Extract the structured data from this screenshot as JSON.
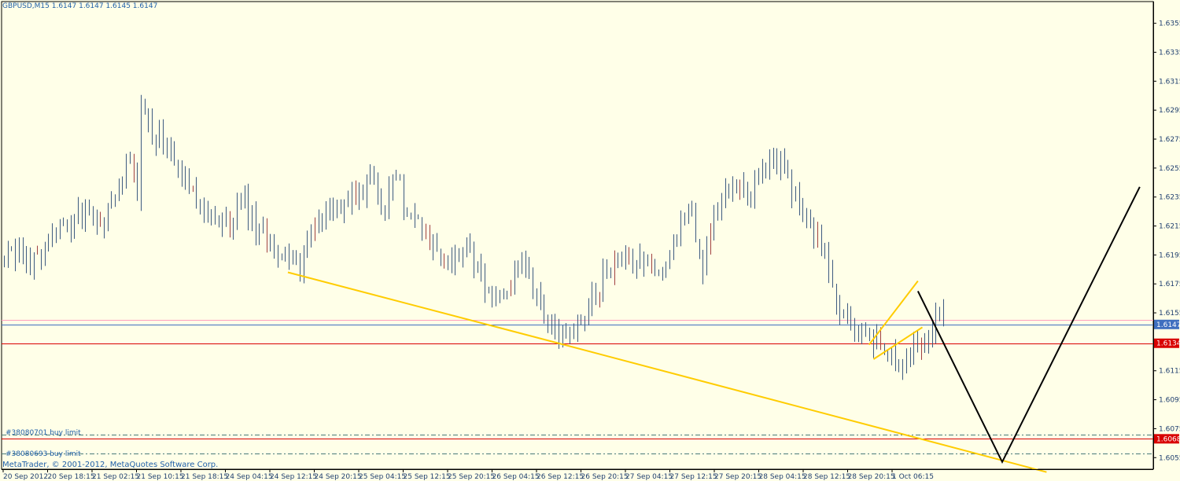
{
  "window": {
    "symbol_header": "GBPUSD,M15  1.6147 1.6147 1.6145 1.6147",
    "copyright": "MetaTrader, © 2001-2012, MetaQuotes Software Corp."
  },
  "orders": [
    {
      "label": "#38080701 buy limit",
      "price": 1.6071
    },
    {
      "label": "#38080693 buy limit",
      "price": 1.6058
    }
  ],
  "colors": {
    "background": "#ffffe8",
    "candles": "#3d5a80",
    "trendline": "#ffcc00",
    "projection": "#000000",
    "level_red": "#d90000",
    "level_pink": "#ff9ebd",
    "bid_badge": "#3f6fbf"
  },
  "chart_data": {
    "type": "candlestick",
    "symbol": "GBPUSD",
    "timeframe": "M15",
    "ylim": [
      1.6047,
      1.637
    ],
    "y_ticks": [
      "1.6355",
      "1.6335",
      "1.6315",
      "1.6295",
      "1.6275",
      "1.6255",
      "1.6235",
      "1.6215",
      "1.6195",
      "1.6175",
      "1.6155",
      "1.6115",
      "1.6095",
      "1.6075",
      "1.6055"
    ],
    "x_tick_labels": [
      "20 Sep 2012",
      "20 Sep 18:15",
      "21 Sep 02:15",
      "21 Sep 10:15",
      "21 Sep 18:15",
      "24 Sep 04:15",
      "24 Sep 12:15",
      "24 Sep 20:15",
      "25 Sep 04:15",
      "25 Sep 12:15",
      "25 Sep 20:15",
      "26 Sep 04:15",
      "26 Sep 12:15",
      "26 Sep 20:15",
      "27 Sep 04:15",
      "27 Sep 12:15",
      "27 Sep 20:15",
      "28 Sep 04:15",
      "28 Sep 12:15",
      "28 Sep 20:15",
      "1 Oct 06:15"
    ],
    "price_path": [
      [
        0,
        1.619
      ],
      [
        2,
        1.6195
      ],
      [
        6,
        1.6188
      ],
      [
        10,
        1.6205
      ],
      [
        14,
        1.6215
      ],
      [
        18,
        1.6222
      ],
      [
        22,
        1.6218
      ],
      [
        25,
        1.623
      ],
      [
        28,
        1.6262
      ],
      [
        30,
        1.624
      ],
      [
        31,
        1.63
      ],
      [
        33,
        1.628
      ],
      [
        36,
        1.627
      ],
      [
        39,
        1.6252
      ],
      [
        42,
        1.6245
      ],
      [
        45,
        1.6225
      ],
      [
        48,
        1.6212
      ],
      [
        51,
        1.6218
      ],
      [
        54,
        1.6232
      ],
      [
        57,
        1.621
      ],
      [
        60,
        1.6205
      ],
      [
        63,
        1.6192
      ],
      [
        66,
        1.6188
      ],
      [
        69,
        1.6205
      ],
      [
        72,
        1.6225
      ],
      [
        75,
        1.6225
      ],
      [
        78,
        1.6235
      ],
      [
        80,
        1.6228
      ],
      [
        83,
        1.6258
      ],
      [
        85,
        1.6225
      ],
      [
        88,
        1.6255
      ],
      [
        90,
        1.6232
      ],
      [
        93,
        1.6222
      ],
      [
        96,
        1.6202
      ],
      [
        99,
        1.6188
      ],
      [
        102,
        1.6192
      ],
      [
        105,
        1.62
      ],
      [
        108,
        1.6178
      ],
      [
        111,
        1.6162
      ],
      [
        114,
        1.6175
      ],
      [
        117,
        1.6192
      ],
      [
        120,
        1.6162
      ],
      [
        123,
        1.6148
      ],
      [
        126,
        1.614
      ],
      [
        129,
        1.615
      ],
      [
        132,
        1.6162
      ],
      [
        135,
        1.6178
      ],
      [
        138,
        1.6188
      ],
      [
        141,
        1.6188
      ],
      [
        144,
        1.6195
      ],
      [
        147,
        1.6178
      ],
      [
        150,
        1.6195
      ],
      [
        152,
        1.6218
      ],
      [
        155,
        1.6225
      ],
      [
        157,
        1.618
      ],
      [
        160,
        1.6222
      ],
      [
        162,
        1.624
      ],
      [
        165,
        1.6238
      ],
      [
        168,
        1.6232
      ],
      [
        171,
        1.6255
      ],
      [
        174,
        1.626
      ],
      [
        176,
        1.6258
      ],
      [
        178,
        1.6235
      ],
      [
        181,
        1.6218
      ],
      [
        184,
        1.62
      ],
      [
        186,
        1.618
      ],
      [
        188,
        1.6155
      ],
      [
        190,
        1.6148
      ],
      [
        192,
        1.614
      ],
      [
        194,
        1.615
      ],
      [
        196,
        1.6135
      ],
      [
        198,
        1.6128
      ],
      [
        200,
        1.6125
      ],
      [
        202,
        1.6122
      ],
      [
        205,
        1.613
      ],
      [
        208,
        1.614
      ],
      [
        210,
        1.6155
      ],
      [
        211,
        1.616
      ],
      [
        212,
        1.6147
      ]
    ],
    "trendline": {
      "points": [
        [
          64,
          1.6183
        ],
        [
          125,
          1.6134
        ],
        [
          235,
          1.6045
        ]
      ]
    },
    "channel_upper": {
      "points": [
        [
          195,
          1.6133
        ],
        [
          206,
          1.6177
        ]
      ]
    },
    "channel_lower": {
      "points": [
        [
          196,
          1.6123
        ],
        [
          207,
          1.6145
        ]
      ]
    },
    "projection": {
      "points": [
        [
          206,
          1.617
        ],
        [
          225,
          1.6052
        ],
        [
          256,
          1.6242
        ]
      ]
    },
    "levels": [
      {
        "label": "1.6147",
        "price": 1.6147,
        "color": "#3f6fbf",
        "kind": "bid"
      },
      {
        "label": "",
        "price": 1.615,
        "color": "#ff9ebd",
        "kind": "pink"
      },
      {
        "label": "1.6134",
        "price": 1.6134,
        "color": "#d90000",
        "kind": "red"
      },
      {
        "label": "1.6068",
        "price": 1.6068,
        "color": "#d90000",
        "kind": "red"
      }
    ]
  }
}
